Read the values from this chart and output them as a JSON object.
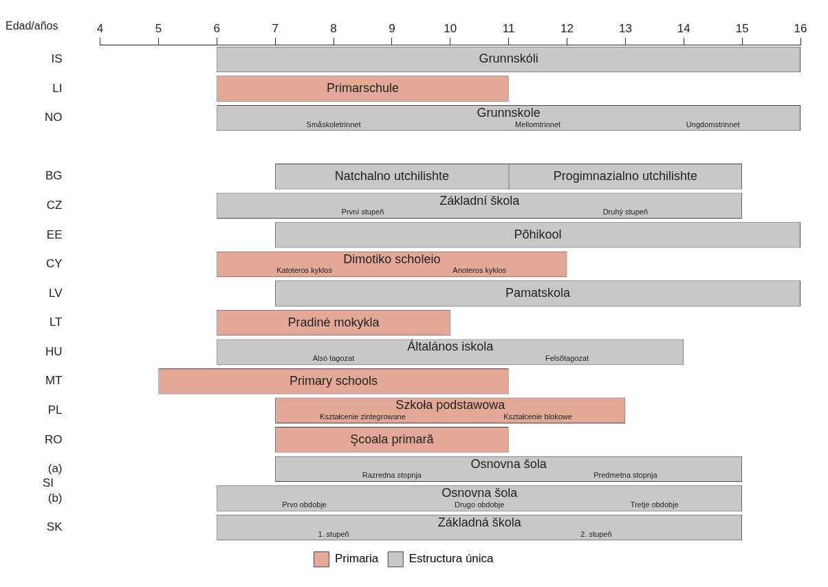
{
  "chart_data": {
    "type": "bar",
    "orientation": "horizontal",
    "xlabel": "Edad/años",
    "xlim": [
      4,
      16
    ],
    "xticks": [
      4,
      5,
      6,
      7,
      8,
      9,
      10,
      11,
      12,
      13,
      14,
      15,
      16
    ],
    "categories": [
      "IS",
      "LI",
      "NO",
      null,
      "BG",
      "CZ",
      "EE",
      "CY",
      "LV",
      "LT",
      "HU",
      "MT",
      "PL",
      "RO",
      "(a)",
      "(b)",
      "SK"
    ],
    "series": [
      {
        "name": "Primaria",
        "color": "#e3a996",
        "values": [
          null,
          5,
          null,
          null,
          null,
          null,
          null,
          6,
          null,
          4,
          null,
          6,
          6,
          4,
          null,
          null,
          null
        ],
        "base": [
          null,
          6,
          null,
          null,
          null,
          null,
          null,
          6,
          null,
          6,
          null,
          5,
          7,
          7,
          null,
          null,
          null
        ],
        "value_labels": [
          null,
          "Primarschule",
          null,
          null,
          null,
          null,
          null,
          "Dimotiko scholeio",
          null,
          "Pradinė mokykla",
          null,
          "Primary schools",
          "Szkoła podstawowa",
          "Şcoala primară",
          null,
          null,
          null
        ]
      },
      {
        "name": "Estructura única",
        "color": "#c8c8c8",
        "values": [
          10,
          null,
          10,
          null,
          4,
          9,
          9,
          null,
          9,
          null,
          8,
          null,
          null,
          null,
          8,
          9,
          9
        ],
        "base": [
          6,
          null,
          6,
          null,
          7,
          6,
          7,
          null,
          7,
          null,
          6,
          null,
          null,
          null,
          7,
          6,
          6
        ],
        "value_labels": [
          "Grunnskóli",
          null,
          "Grunnskole",
          null,
          "Natchalno utchilishte",
          "Základní škola",
          "Põhikool",
          null,
          "Pamatskola",
          null,
          "Általános iskola",
          null,
          null,
          null,
          "Osnovna šola",
          "Osnovna šola",
          "Základná škola"
        ]
      },
      {
        "color": "#c8c8c8",
        "values": [
          null,
          null,
          null,
          null,
          4,
          null,
          null,
          null,
          null,
          null,
          null,
          null,
          null,
          null,
          null,
          null,
          null
        ],
        "base": [
          null,
          null,
          null,
          null,
          11,
          null,
          null,
          null,
          null,
          null,
          null,
          null,
          null,
          null,
          null,
          null,
          null
        ],
        "value_labels": [
          null,
          null,
          null,
          null,
          "Progimnazialno utchilishte",
          null,
          null,
          null,
          null,
          null,
          null,
          null,
          null,
          null,
          null,
          null,
          null
        ]
      }
    ],
    "annotations": [
      {
        "text": "Småskoletrinnet",
        "x": 8,
        "y": "NO"
      },
      {
        "text": "Mellomtrinnet",
        "x": 11.5,
        "y": "NO"
      },
      {
        "text": "Ungdomstrinnet",
        "x": 14.5,
        "y": "NO"
      },
      {
        "text": "První stupeň",
        "x": 8.5,
        "y": "CZ"
      },
      {
        "text": "Druhý stupeň",
        "x": 13,
        "y": "CZ"
      },
      {
        "text": "Katoteros kyklos",
        "x": 7.5,
        "y": "CY"
      },
      {
        "text": "Anoteros kyklos",
        "x": 10.5,
        "y": "CY"
      },
      {
        "text": "Alsó tagozat",
        "x": 8,
        "y": "HU"
      },
      {
        "text": "Felsőtagozat",
        "x": 12,
        "y": "HU"
      },
      {
        "text": "Kształcenie zintegrowane",
        "x": 8.5,
        "y": "PL"
      },
      {
        "text": "Kształcenie blokowe",
        "x": 11.5,
        "y": "PL"
      },
      {
        "text": "Razredna stopnja",
        "x": 9,
        "y": "(a)"
      },
      {
        "text": "Predmetna stopnja",
        "x": 13,
        "y": "(a)"
      },
      {
        "text": "Prvo obdobje",
        "x": 7.5,
        "y": "(b)"
      },
      {
        "text": "Drugo obdobje",
        "x": 10.5,
        "y": "(b)"
      },
      {
        "text": "Tretje obdobje",
        "x": 13.5,
        "y": "(b)"
      },
      {
        "text": "1. stupeň",
        "x": 8,
        "y": "SK"
      },
      {
        "text": "2. stupeň",
        "x": 12.5,
        "y": "SK"
      },
      "SI"
    ],
    "legend": "bottom",
    "grid": false
  }
}
